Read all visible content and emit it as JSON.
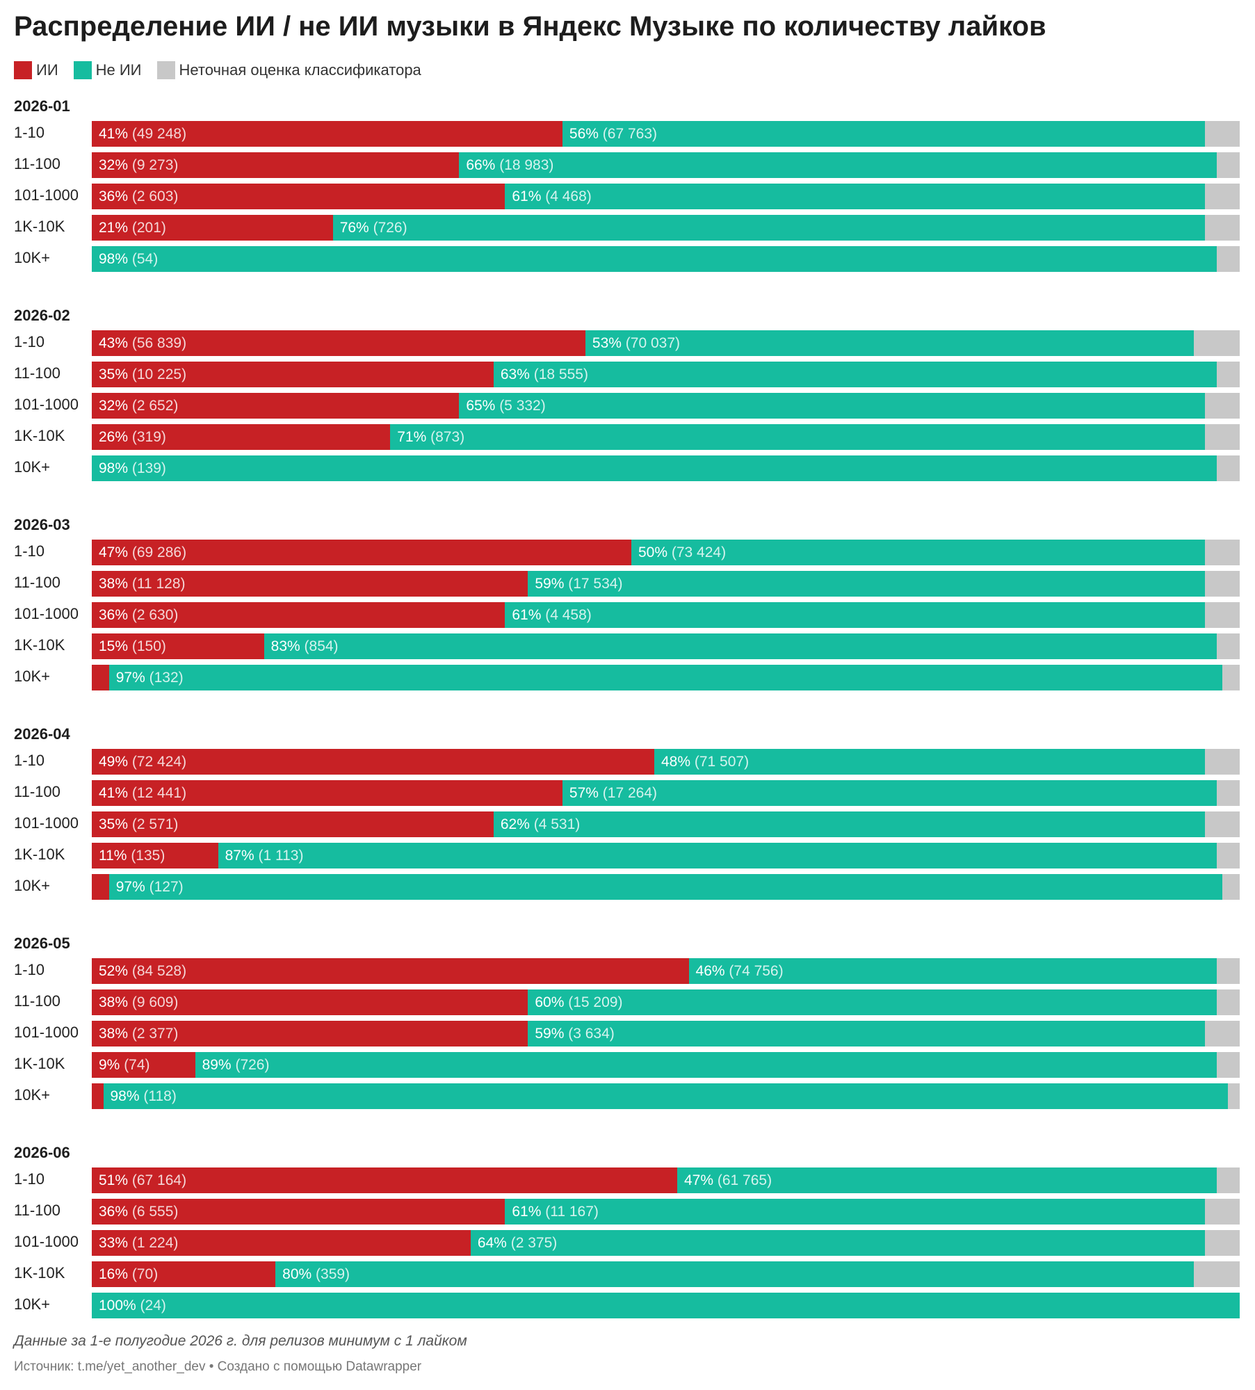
{
  "title": "Распределение ИИ / не ИИ музыки в Яндекс Музыке по количеству лайков",
  "legend": [
    {
      "label": "ИИ",
      "color": "#c72125"
    },
    {
      "label": "Не ИИ",
      "color": "#16bc9f"
    },
    {
      "label": "Неточная оценка классификатора",
      "color": "#c8c8c8"
    }
  ],
  "colors": {
    "ai": "#c72125",
    "non_ai": "#16bc9f",
    "uncertain": "#c8c8c8"
  },
  "note": "Данные за 1-е полугодие 2026 г. для релизов минимум с 1 лайком",
  "source": "Источник: t.me/yet_another_dev • Создано с помощью Datawrapper",
  "chart_data": {
    "type": "bar",
    "orientation": "horizontal",
    "stacked": "percent",
    "series_names": [
      "ИИ",
      "Не ИИ",
      "Неточная оценка классификатора"
    ],
    "groups": [
      {
        "month": "2026-01",
        "rows": [
          {
            "label": "1-10",
            "ai": {
              "pct": 41,
              "count": "49 248"
            },
            "non_ai": {
              "pct": 56,
              "count": "67 763"
            }
          },
          {
            "label": "11-100",
            "ai": {
              "pct": 32,
              "count": "9 273"
            },
            "non_ai": {
              "pct": 66,
              "count": "18 983"
            }
          },
          {
            "label": "101-1000",
            "ai": {
              "pct": 36,
              "count": "2 603"
            },
            "non_ai": {
              "pct": 61,
              "count": "4 468"
            }
          },
          {
            "label": "1K-10K",
            "ai": {
              "pct": 21,
              "count": "201"
            },
            "non_ai": {
              "pct": 76,
              "count": "726"
            }
          },
          {
            "label": "10K+",
            "ai": {
              "pct": 0,
              "count": null
            },
            "non_ai": {
              "pct": 98,
              "count": "54"
            }
          }
        ]
      },
      {
        "month": "2026-02",
        "rows": [
          {
            "label": "1-10",
            "ai": {
              "pct": 43,
              "count": "56 839"
            },
            "non_ai": {
              "pct": 53,
              "count": "70 037"
            }
          },
          {
            "label": "11-100",
            "ai": {
              "pct": 35,
              "count": "10 225"
            },
            "non_ai": {
              "pct": 63,
              "count": "18 555"
            }
          },
          {
            "label": "101-1000",
            "ai": {
              "pct": 32,
              "count": "2 652"
            },
            "non_ai": {
              "pct": 65,
              "count": "5 332"
            }
          },
          {
            "label": "1K-10K",
            "ai": {
              "pct": 26,
              "count": "319"
            },
            "non_ai": {
              "pct": 71,
              "count": "873"
            }
          },
          {
            "label": "10K+",
            "ai": {
              "pct": 0,
              "count": null
            },
            "non_ai": {
              "pct": 98,
              "count": "139"
            }
          }
        ]
      },
      {
        "month": "2026-03",
        "rows": [
          {
            "label": "1-10",
            "ai": {
              "pct": 47,
              "count": "69 286"
            },
            "non_ai": {
              "pct": 50,
              "count": "73 424"
            }
          },
          {
            "label": "11-100",
            "ai": {
              "pct": 38,
              "count": "11 128"
            },
            "non_ai": {
              "pct": 59,
              "count": "17 534"
            }
          },
          {
            "label": "101-1000",
            "ai": {
              "pct": 36,
              "count": "2 630"
            },
            "non_ai": {
              "pct": 61,
              "count": "4 458"
            }
          },
          {
            "label": "1K-10K",
            "ai": {
              "pct": 15,
              "count": "150"
            },
            "non_ai": {
              "pct": 83,
              "count": "854"
            }
          },
          {
            "label": "10K+",
            "ai": {
              "pct": 1.5,
              "count": null
            },
            "non_ai": {
              "pct": 97,
              "count": "132"
            }
          }
        ]
      },
      {
        "month": "2026-04",
        "rows": [
          {
            "label": "1-10",
            "ai": {
              "pct": 49,
              "count": "72 424"
            },
            "non_ai": {
              "pct": 48,
              "count": "71 507"
            }
          },
          {
            "label": "11-100",
            "ai": {
              "pct": 41,
              "count": "12 441"
            },
            "non_ai": {
              "pct": 57,
              "count": "17 264"
            }
          },
          {
            "label": "101-1000",
            "ai": {
              "pct": 35,
              "count": "2 571"
            },
            "non_ai": {
              "pct": 62,
              "count": "4 531"
            }
          },
          {
            "label": "1K-10K",
            "ai": {
              "pct": 11,
              "count": "135"
            },
            "non_ai": {
              "pct": 87,
              "count": "1 113"
            }
          },
          {
            "label": "10K+",
            "ai": {
              "pct": 1.5,
              "count": null
            },
            "non_ai": {
              "pct": 97,
              "count": "127"
            }
          }
        ]
      },
      {
        "month": "2026-05",
        "rows": [
          {
            "label": "1-10",
            "ai": {
              "pct": 52,
              "count": "84 528"
            },
            "non_ai": {
              "pct": 46,
              "count": "74 756"
            }
          },
          {
            "label": "11-100",
            "ai": {
              "pct": 38,
              "count": "9 609"
            },
            "non_ai": {
              "pct": 60,
              "count": "15 209"
            }
          },
          {
            "label": "101-1000",
            "ai": {
              "pct": 38,
              "count": "2 377"
            },
            "non_ai": {
              "pct": 59,
              "count": "3 634"
            }
          },
          {
            "label": "1K-10K",
            "ai": {
              "pct": 9,
              "count": "74"
            },
            "non_ai": {
              "pct": 89,
              "count": "726"
            }
          },
          {
            "label": "10K+",
            "ai": {
              "pct": 1,
              "count": null
            },
            "non_ai": {
              "pct": 98,
              "count": "118"
            }
          }
        ]
      },
      {
        "month": "2026-06",
        "rows": [
          {
            "label": "1-10",
            "ai": {
              "pct": 51,
              "count": "67 164"
            },
            "non_ai": {
              "pct": 47,
              "count": "61 765"
            }
          },
          {
            "label": "11-100",
            "ai": {
              "pct": 36,
              "count": "6 555"
            },
            "non_ai": {
              "pct": 61,
              "count": "11 167"
            }
          },
          {
            "label": "101-1000",
            "ai": {
              "pct": 33,
              "count": "1 224"
            },
            "non_ai": {
              "pct": 64,
              "count": "2 375"
            }
          },
          {
            "label": "1K-10K",
            "ai": {
              "pct": 16,
              "count": "70"
            },
            "non_ai": {
              "pct": 80,
              "count": "359"
            }
          },
          {
            "label": "10K+",
            "ai": {
              "pct": 0,
              "count": null
            },
            "non_ai": {
              "pct": 100,
              "count": "24"
            }
          }
        ]
      }
    ]
  }
}
